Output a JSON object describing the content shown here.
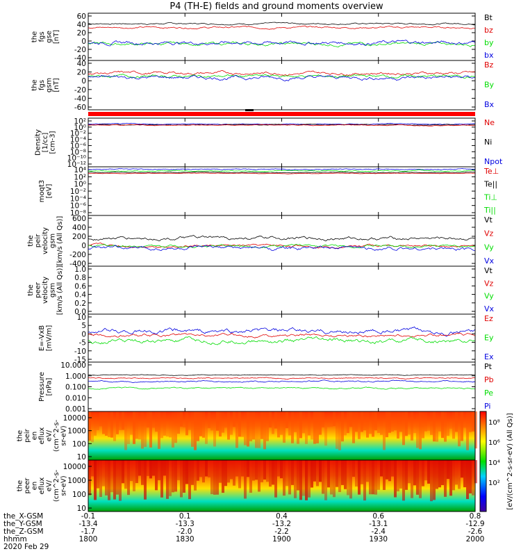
{
  "title": "P4 (TH-E) fields and ground moments overview",
  "colors": {
    "black": "#000000",
    "red": "#e00000",
    "green": "#00dd00",
    "blue": "#0000e0"
  },
  "panels": [
    {
      "id": "fgs_gse",
      "ylabel": [
        "the",
        "fgs",
        "gse",
        "[nT]"
      ],
      "ticks": [
        "60",
        "40",
        "20",
        "0",
        "-20",
        "-40"
      ],
      "ylim": [
        -40,
        60
      ],
      "legend": [
        {
          "text": "Bt",
          "color": "black"
        },
        {
          "text": "bz",
          "color": "red"
        },
        {
          "text": "by",
          "color": "green"
        },
        {
          "text": "bx",
          "color": "blue"
        }
      ],
      "series": [
        {
          "color": "black",
          "base": 38,
          "amp": 4
        },
        {
          "color": "red",
          "base": 30,
          "amp": 5
        },
        {
          "color": "green",
          "base": -5,
          "amp": 8
        },
        {
          "color": "blue",
          "base": -2,
          "amp": 10
        }
      ]
    },
    {
      "id": "fgs_gsm",
      "ylabel": [
        "the",
        "fgs",
        "gsm",
        "[nT]"
      ],
      "ticks": [
        "40",
        "20",
        "0",
        "-20",
        "-40",
        "-60"
      ],
      "ylim": [
        -70,
        40
      ],
      "legend": [
        {
          "text": "Bz",
          "color": "red"
        },
        {
          "text": "By",
          "color": "green"
        },
        {
          "text": "Bx",
          "color": "blue"
        }
      ],
      "series": [
        {
          "color": "red",
          "base": 12,
          "amp": 8
        },
        {
          "color": "green",
          "base": 5,
          "amp": 8
        },
        {
          "color": "blue",
          "base": 2,
          "amp": 10
        }
      ]
    },
    {
      "id": "density",
      "ylabel": [
        "Density",
        "[1/cc]",
        "[cm-3]"
      ],
      "ticks": [
        "10²",
        "10⁰",
        "10⁻²",
        "10⁻⁴",
        "10⁻⁶",
        "10⁻⁸",
        "10⁻¹⁰",
        "10⁻¹²"
      ],
      "ylim": [
        -12,
        2
      ],
      "legend": [
        {
          "text": "Ne",
          "color": "red"
        },
        {
          "text": "Ni",
          "color": "black"
        },
        {
          "text": "Npot",
          "color": "blue"
        }
      ],
      "series": [
        {
          "color": "blue",
          "base": 0.3,
          "amp": 0.3
        },
        {
          "color": "black",
          "base": 0.1,
          "amp": 0.3
        },
        {
          "color": "red",
          "base": 0.0,
          "amp": 0.3
        }
      ]
    },
    {
      "id": "temp",
      "ylabel": [
        "moqt3",
        "[eV]"
      ],
      "ticks": [
        "10⁴",
        "10²",
        "10⁰",
        "10⁻²",
        "10⁻⁴",
        "10⁻⁶",
        "10⁻⁸"
      ],
      "ylim": [
        -8,
        4
      ],
      "legend": [
        {
          "text": "Te⊥",
          "color": "red"
        },
        {
          "text": "Te||",
          "color": "black"
        },
        {
          "text": "Ti⊥",
          "color": "green"
        },
        {
          "text": "Ti||",
          "color": "green"
        }
      ],
      "series": [
        {
          "color": "blue",
          "base": 3.4,
          "amp": 0.3
        },
        {
          "color": "green",
          "base": 3.0,
          "amp": 0.3
        },
        {
          "color": "black",
          "base": 2.6,
          "amp": 0.2
        },
        {
          "color": "red",
          "base": 2.4,
          "amp": 0.2
        }
      ]
    },
    {
      "id": "peir_vel",
      "ylabel": [
        "the",
        "peir",
        "velocity",
        "gsm",
        "[km/s (All Qs)]"
      ],
      "ticks": [
        "600",
        "400",
        "200",
        "0",
        "-200",
        "-400"
      ],
      "ylim": [
        -400,
        600
      ],
      "legend": [
        {
          "text": "Vt",
          "color": "black"
        },
        {
          "text": "Vz",
          "color": "red"
        },
        {
          "text": "Vy",
          "color": "green"
        },
        {
          "text": "Vx",
          "color": "blue"
        }
      ],
      "series": [
        {
          "color": "black",
          "base": 150,
          "amp": 80
        },
        {
          "color": "red",
          "base": 0,
          "amp": 60
        },
        {
          "color": "green",
          "base": 0,
          "amp": 60
        },
        {
          "color": "blue",
          "base": -50,
          "amp": 90
        }
      ]
    },
    {
      "id": "peer_vel",
      "ylabel": [
        "the",
        "peer",
        "velocity",
        "gsm",
        "[km/s (All Qs)]"
      ],
      "ticks": [
        "1.0",
        "0.8",
        "0.6",
        "0.4",
        "0.2",
        "0.0"
      ],
      "ylim": [
        0,
        1
      ],
      "legend": [
        {
          "text": "Vt",
          "color": "black"
        },
        {
          "text": "Vz",
          "color": "red"
        },
        {
          "text": "Vy",
          "color": "green"
        },
        {
          "text": "Vx",
          "color": "blue"
        }
      ],
      "series": []
    },
    {
      "id": "efield",
      "ylabel": [
        "E=-VxB",
        "[mV/m]"
      ],
      "ticks": [
        "10",
        "5",
        "0",
        "-5",
        "-10",
        "-15"
      ],
      "ylim": [
        -15,
        10
      ],
      "legend": [
        {
          "text": "Ez",
          "color": "red"
        },
        {
          "text": "Ey",
          "color": "green"
        },
        {
          "text": "Ex",
          "color": "blue"
        }
      ],
      "series": [
        {
          "color": "blue",
          "base": 1,
          "amp": 3
        },
        {
          "color": "red",
          "base": -1,
          "amp": 2
        },
        {
          "color": "green",
          "base": -4,
          "amp": 3
        }
      ]
    },
    {
      "id": "pressure",
      "ylabel": [
        "Pressure",
        "[nPa]"
      ],
      "ticks": [
        "10.000",
        "1.000",
        "0.100",
        "0.010",
        "0.001"
      ],
      "ylim": [
        -3,
        1
      ],
      "legend": [
        {
          "text": "Pt",
          "color": "black"
        },
        {
          "text": "Pb",
          "color": "red"
        },
        {
          "text": "Pe",
          "color": "green"
        },
        {
          "text": "Pi",
          "color": "blue"
        }
      ],
      "series": [
        {
          "color": "black",
          "base": -0.05,
          "amp": 0.08
        },
        {
          "color": "red",
          "base": -0.3,
          "amp": 0.12
        },
        {
          "color": "blue",
          "base": -0.55,
          "amp": 0.15
        },
        {
          "color": "green",
          "base": -1.1,
          "amp": 0.15
        }
      ]
    }
  ],
  "spectrograms": [
    {
      "id": "peir_eflux",
      "ylabel": [
        "the",
        "peir",
        "en",
        "eflux",
        "eV/",
        "(cm^2-s-",
        "sr-eV)"
      ],
      "ticks": [
        "10000",
        "1000",
        "100",
        "10"
      ]
    },
    {
      "id": "peer_eflux",
      "ylabel": [
        "the",
        "peer",
        "en",
        "eflux",
        "eV/",
        "(cm^2-s-",
        "sr-eV)"
      ],
      "ticks": [
        "10000",
        "1000",
        "100",
        "10"
      ]
    }
  ],
  "colorbar": {
    "ticks": [
      "10⁸",
      "10⁶",
      "10⁴",
      "10²"
    ],
    "label": "[eV/(cm^2-s-sr-eV) (All Qs)]"
  },
  "footer": {
    "rows": [
      {
        "label": "the_X-GSM",
        "values": [
          "-0.1",
          "0.1",
          "0.4",
          "0.6",
          "0.8"
        ]
      },
      {
        "label": "the_Y-GSM",
        "values": [
          "-13.4",
          "-13.3",
          "-13.2",
          "-13.1",
          "-12.9"
        ]
      },
      {
        "label": "the_Z-GSM",
        "values": [
          "-1.7",
          "-2.0",
          "-2.2",
          "-2.4",
          "-2.6"
        ]
      },
      {
        "label": "hhmm",
        "values": [
          "1800",
          "1830",
          "1900",
          "1930",
          "2000"
        ]
      }
    ],
    "date": "2020 Feb 29"
  },
  "chart_data": {
    "type": "line",
    "title": "P4 (TH-E) fields and ground moments overview",
    "x": [
      "1800",
      "1830",
      "1900",
      "1930",
      "2000"
    ],
    "xlabel": "hhmm",
    "date": "2020 Feb 29",
    "panels": [
      "the fgs gse [nT]",
      "the fgs gsm [nT]",
      "Density [1/cc] [cm-3]",
      "moqt3 [eV]",
      "the peir velocity gsm [km/s (All Qs)]",
      "the peer velocity gsm [km/s (All Qs)]",
      "E=-VxB [mV/m]",
      "Pressure [nPa]",
      "the peir en eflux",
      "the peer en eflux"
    ]
  }
}
